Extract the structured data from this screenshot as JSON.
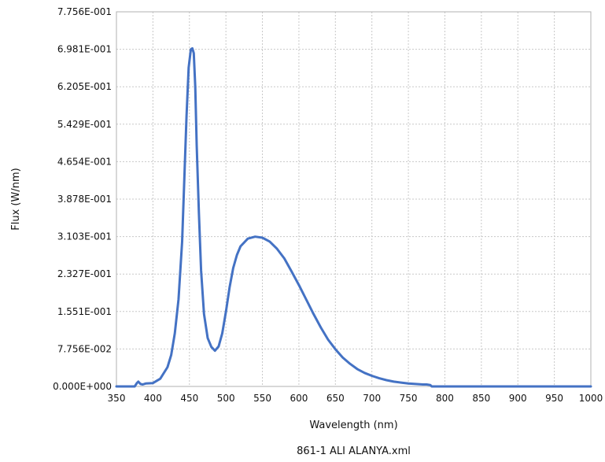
{
  "chart_data": {
    "type": "line",
    "xlabel": "Wavelength (nm)",
    "ylabel": "Flux (W/nm)",
    "footer": "861-1 ALI ALANYA.xml",
    "xlim": [
      350,
      1000
    ],
    "ylim": [
      0,
      0.7756
    ],
    "x_ticks": [
      350,
      400,
      450,
      500,
      550,
      600,
      650,
      700,
      750,
      800,
      850,
      900,
      950,
      1000
    ],
    "y_ticks": [
      {
        "value": 0.0,
        "label": "0.000E+000"
      },
      {
        "value": 0.07756,
        "label": "7.756E-002"
      },
      {
        "value": 0.1551,
        "label": "1.551E-001"
      },
      {
        "value": 0.2327,
        "label": "2.327E-001"
      },
      {
        "value": 0.3103,
        "label": "3.103E-001"
      },
      {
        "value": 0.3878,
        "label": "3.878E-001"
      },
      {
        "value": 0.4654,
        "label": "4.654E-001"
      },
      {
        "value": 0.5429,
        "label": "5.429E-001"
      },
      {
        "value": 0.6205,
        "label": "6.205E-001"
      },
      {
        "value": 0.6981,
        "label": "6.981E-001"
      },
      {
        "value": 0.7756,
        "label": "7.756E-001"
      }
    ],
    "grid": true,
    "line_color": "#4472c4",
    "series": [
      {
        "x": [
          350,
          375,
          378,
          380,
          383,
          386,
          390,
          400,
          410,
          420,
          425,
          430,
          435,
          440,
          443,
          446,
          449,
          452,
          454,
          456,
          458,
          460,
          463,
          466,
          470,
          475,
          480,
          485,
          490,
          495,
          500,
          505,
          510,
          515,
          520,
          530,
          540,
          550,
          560,
          570,
          580,
          590,
          600,
          610,
          620,
          630,
          640,
          650,
          660,
          670,
          680,
          690,
          700,
          710,
          720,
          730,
          740,
          750,
          760,
          770,
          775,
          780,
          782,
          785,
          800,
          850,
          900,
          950,
          1000
        ],
        "y": [
          0.0,
          0.0,
          0.007,
          0.01,
          0.005,
          0.004,
          0.006,
          0.007,
          0.016,
          0.04,
          0.065,
          0.11,
          0.18,
          0.3,
          0.43,
          0.56,
          0.66,
          0.698,
          0.7,
          0.69,
          0.62,
          0.5,
          0.36,
          0.24,
          0.15,
          0.1,
          0.082,
          0.074,
          0.083,
          0.11,
          0.155,
          0.205,
          0.245,
          0.272,
          0.29,
          0.306,
          0.31,
          0.308,
          0.3,
          0.285,
          0.265,
          0.238,
          0.21,
          0.18,
          0.15,
          0.122,
          0.097,
          0.077,
          0.06,
          0.047,
          0.036,
          0.028,
          0.022,
          0.017,
          0.013,
          0.01,
          0.008,
          0.006,
          0.005,
          0.004,
          0.004,
          0.003,
          0.0,
          0.0,
          0.0,
          0.0,
          0.0,
          0.0,
          0.0
        ]
      }
    ]
  }
}
